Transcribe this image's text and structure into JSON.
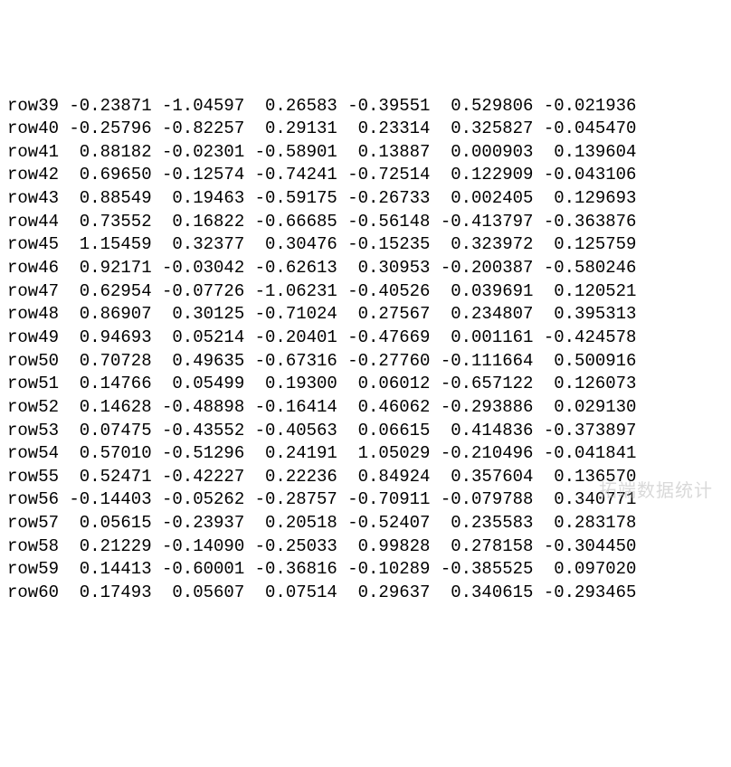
{
  "table": {
    "type": "table",
    "font_family": "monospace",
    "font_size": 19,
    "text_color": "#000000",
    "background_color": "#ffffff",
    "label_width_ch": 5,
    "value_width_ch": 9,
    "value_wide_width_ch": 10,
    "columns": 6,
    "rows": [
      {
        "label": "row39",
        "vals": [
          "-0.23871",
          "-1.04597",
          " 0.26583",
          "-0.39551",
          " 0.529806",
          "-0.021936"
        ]
      },
      {
        "label": "row40",
        "vals": [
          "-0.25796",
          "-0.82257",
          " 0.29131",
          " 0.23314",
          " 0.325827",
          "-0.045470"
        ]
      },
      {
        "label": "row41",
        "vals": [
          " 0.88182",
          "-0.02301",
          "-0.58901",
          " 0.13887",
          " 0.000903",
          " 0.139604"
        ]
      },
      {
        "label": "row42",
        "vals": [
          " 0.69650",
          "-0.12574",
          "-0.74241",
          "-0.72514",
          " 0.122909",
          "-0.043106"
        ]
      },
      {
        "label": "row43",
        "vals": [
          " 0.88549",
          " 0.19463",
          "-0.59175",
          "-0.26733",
          " 0.002405",
          " 0.129693"
        ]
      },
      {
        "label": "row44",
        "vals": [
          " 0.73552",
          " 0.16822",
          "-0.66685",
          "-0.56148",
          "-0.413797",
          "-0.363876"
        ]
      },
      {
        "label": "row45",
        "vals": [
          " 1.15459",
          " 0.32377",
          " 0.30476",
          "-0.15235",
          " 0.323972",
          " 0.125759"
        ]
      },
      {
        "label": "row46",
        "vals": [
          " 0.92171",
          "-0.03042",
          "-0.62613",
          " 0.30953",
          "-0.200387",
          "-0.580246"
        ]
      },
      {
        "label": "row47",
        "vals": [
          " 0.62954",
          "-0.07726",
          "-1.06231",
          "-0.40526",
          " 0.039691",
          " 0.120521"
        ]
      },
      {
        "label": "row48",
        "vals": [
          " 0.86907",
          " 0.30125",
          "-0.71024",
          " 0.27567",
          " 0.234807",
          " 0.395313"
        ]
      },
      {
        "label": "row49",
        "vals": [
          " 0.94693",
          " 0.05214",
          "-0.20401",
          "-0.47669",
          " 0.001161",
          "-0.424578"
        ]
      },
      {
        "label": "row50",
        "vals": [
          " 0.70728",
          " 0.49635",
          "-0.67316",
          "-0.27760",
          "-0.111664",
          " 0.500916"
        ]
      },
      {
        "label": "row51",
        "vals": [
          " 0.14766",
          " 0.05499",
          " 0.19300",
          " 0.06012",
          "-0.657122",
          " 0.126073"
        ]
      },
      {
        "label": "row52",
        "vals": [
          " 0.14628",
          "-0.48898",
          "-0.16414",
          " 0.46062",
          "-0.293886",
          " 0.029130"
        ]
      },
      {
        "label": "row53",
        "vals": [
          " 0.07475",
          "-0.43552",
          "-0.40563",
          " 0.06615",
          " 0.414836",
          "-0.373897"
        ]
      },
      {
        "label": "row54",
        "vals": [
          " 0.57010",
          "-0.51296",
          " 0.24191",
          " 1.05029",
          "-0.210496",
          "-0.041841"
        ]
      },
      {
        "label": "row55",
        "vals": [
          " 0.52471",
          "-0.42227",
          " 0.22236",
          " 0.84924",
          " 0.357604",
          " 0.136570"
        ]
      },
      {
        "label": "row56",
        "vals": [
          "-0.14403",
          "-0.05262",
          "-0.28757",
          "-0.70911",
          "-0.079788",
          " 0.340771"
        ]
      },
      {
        "label": "row57",
        "vals": [
          " 0.05615",
          "-0.23937",
          " 0.20518",
          "-0.52407",
          " 0.235583",
          " 0.283178"
        ]
      },
      {
        "label": "row58",
        "vals": [
          " 0.21229",
          "-0.14090",
          "-0.25033",
          " 0.99828",
          " 0.278158",
          "-0.304450"
        ]
      },
      {
        "label": "row59",
        "vals": [
          " 0.14413",
          "-0.60001",
          "-0.36816",
          "-0.10289",
          "-0.385525",
          " 0.097020"
        ]
      },
      {
        "label": "row60",
        "vals": [
          " 0.17493",
          " 0.05607",
          " 0.07514",
          " 0.29637",
          " 0.340615",
          "-0.293465"
        ]
      }
    ]
  },
  "watermark": "拓端数据统计"
}
